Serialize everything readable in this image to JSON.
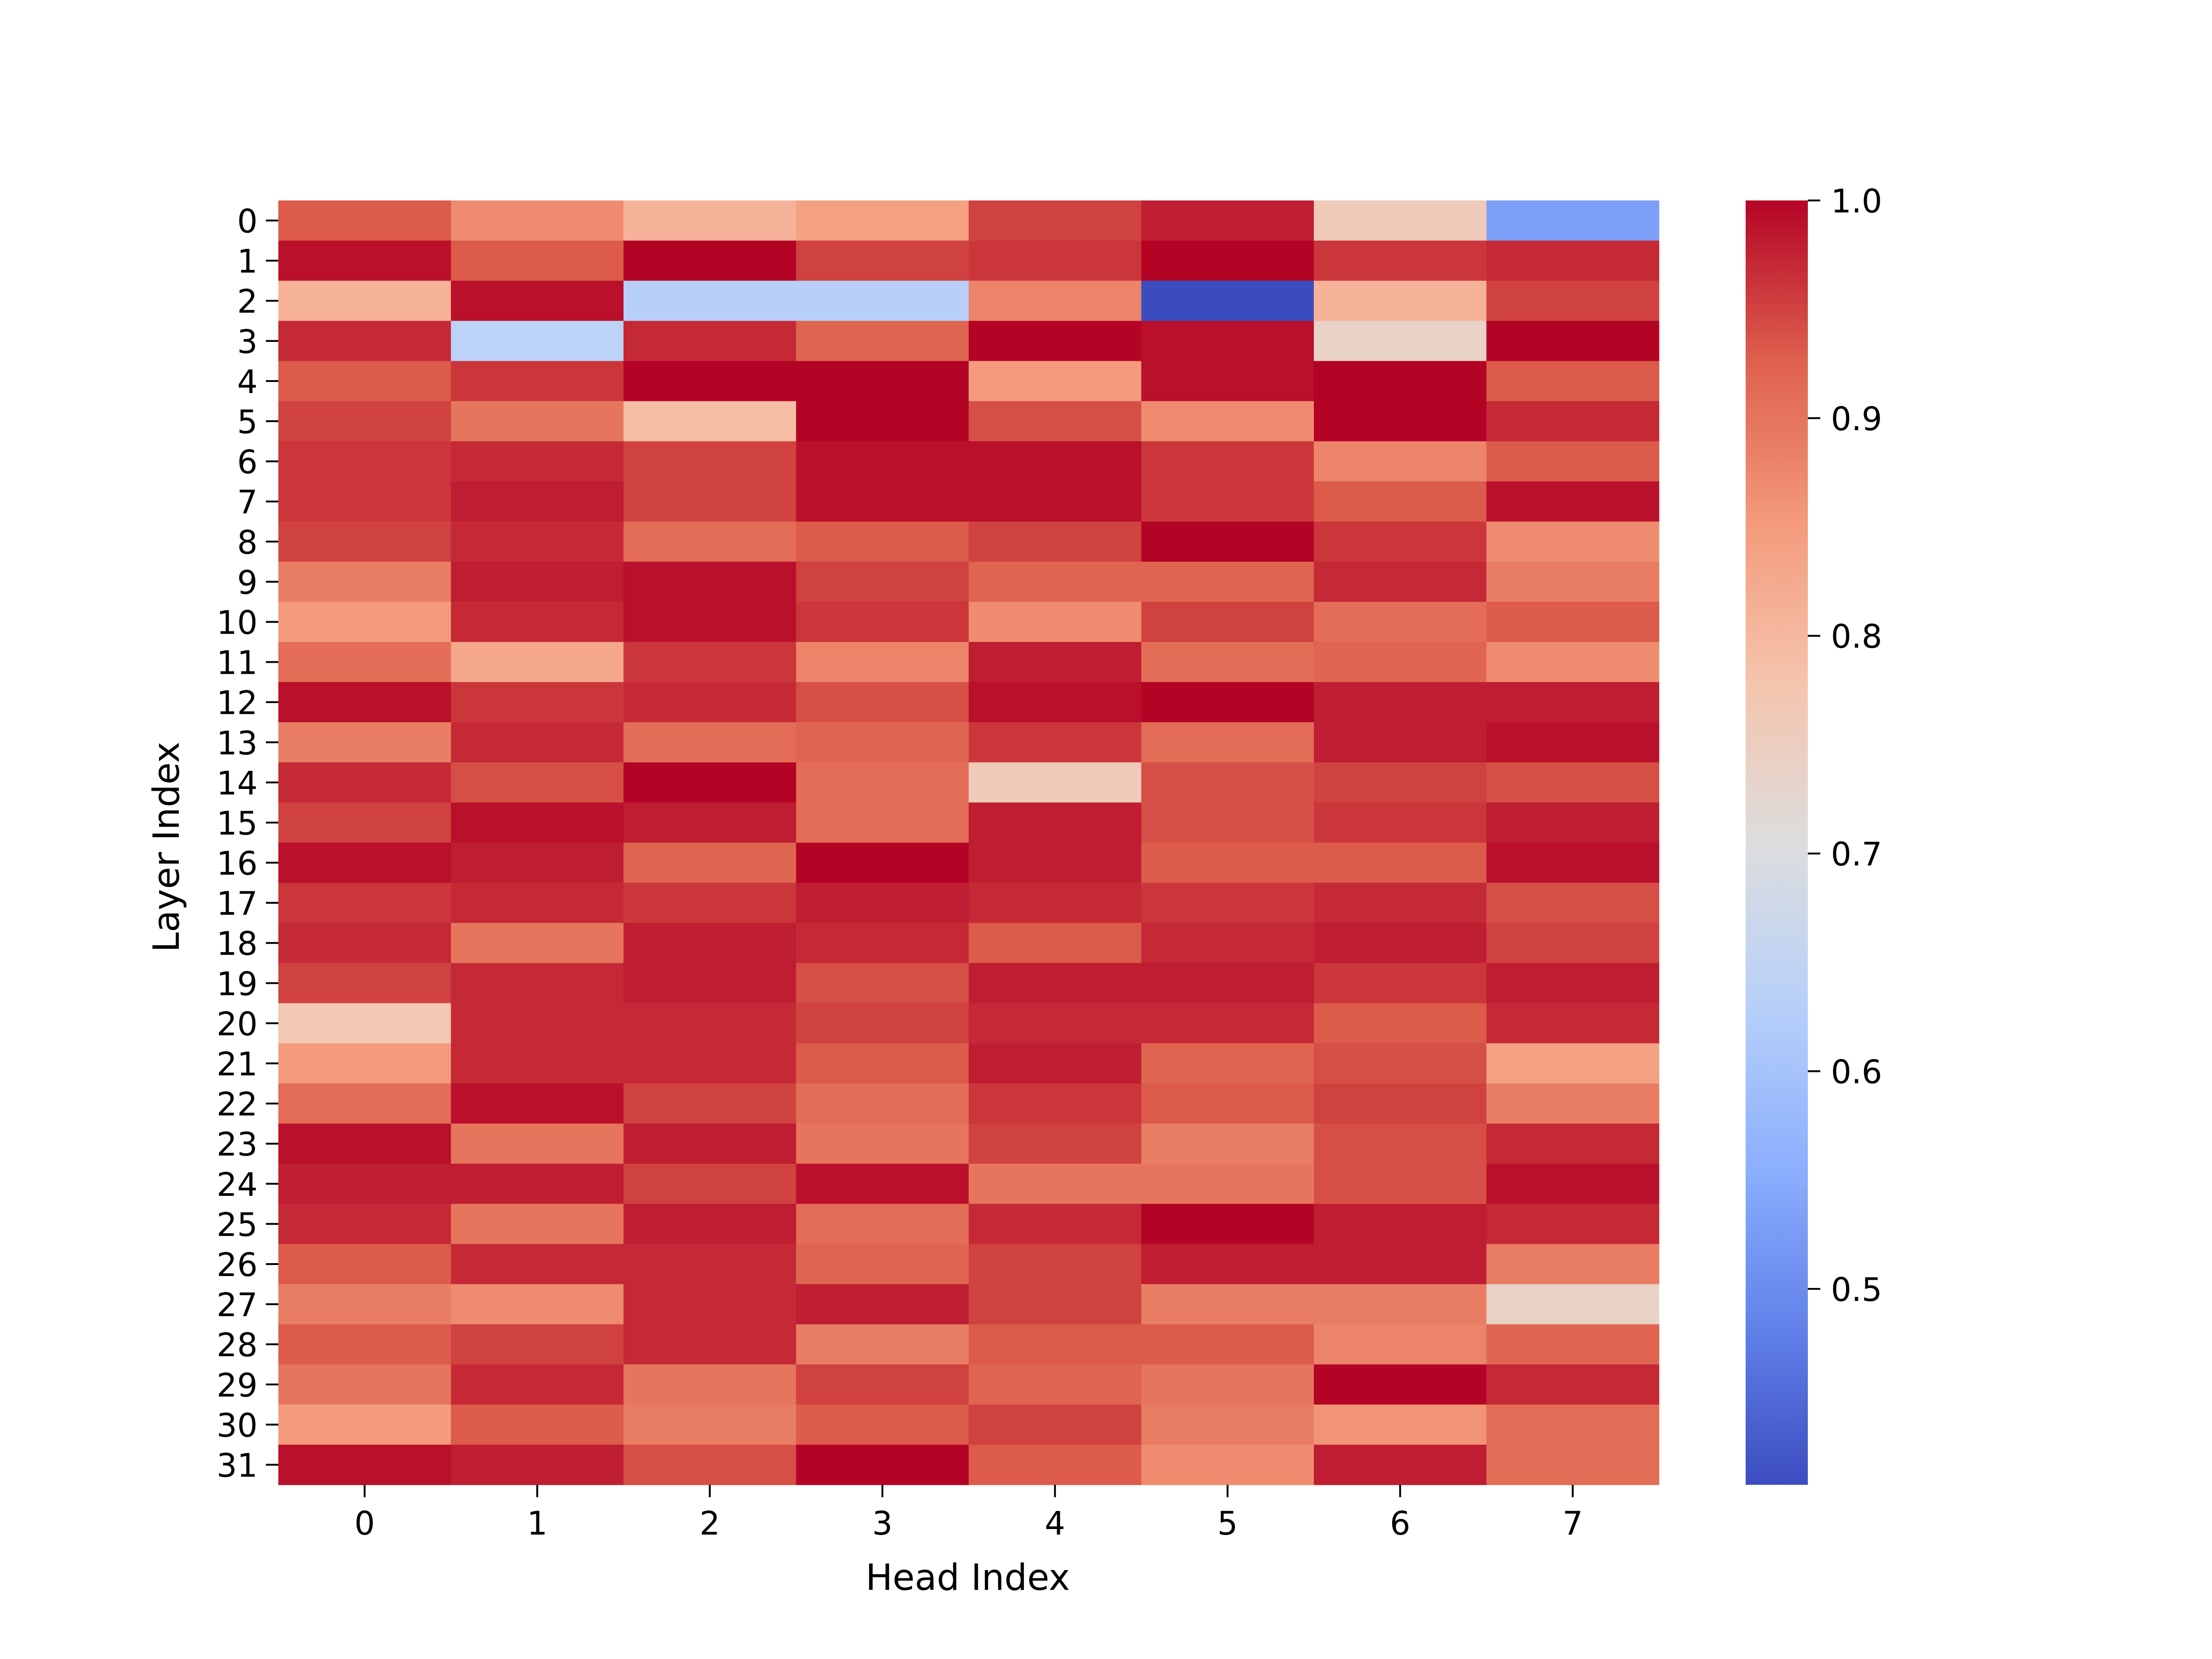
{
  "chart_data": {
    "type": "heatmap",
    "title": "",
    "xlabel": "Head Index",
    "ylabel": "Layer Index",
    "x_categories": [
      "0",
      "1",
      "2",
      "3",
      "4",
      "5",
      "6",
      "7"
    ],
    "y_categories": [
      "0",
      "1",
      "2",
      "3",
      "4",
      "5",
      "6",
      "7",
      "8",
      "9",
      "10",
      "11",
      "12",
      "13",
      "14",
      "15",
      "16",
      "17",
      "18",
      "19",
      "20",
      "21",
      "22",
      "23",
      "24",
      "25",
      "26",
      "27",
      "28",
      "29",
      "30",
      "31"
    ],
    "colormap": "coolwarm",
    "vmin": 0.41,
    "vmax": 1.0,
    "colorbar_ticks": [
      "1.0",
      "0.9",
      "0.8",
      "0.7",
      "0.6",
      "0.5"
    ],
    "colorbar_tick_values": [
      1.0,
      0.9,
      0.8,
      0.7,
      0.6,
      0.5
    ],
    "values": [
      [
        0.93,
        0.87,
        0.81,
        0.84,
        0.95,
        0.98,
        0.76,
        0.53
      ],
      [
        0.99,
        0.93,
        1.0,
        0.95,
        0.96,
        1.0,
        0.96,
        0.97
      ],
      [
        0.81,
        0.99,
        0.63,
        0.63,
        0.88,
        0.41,
        0.81,
        0.95
      ],
      [
        0.97,
        0.64,
        0.97,
        0.92,
        1.0,
        0.99,
        0.74,
        1.0
      ],
      [
        0.93,
        0.96,
        1.0,
        1.0,
        0.85,
        0.99,
        1.0,
        0.93
      ],
      [
        0.95,
        0.9,
        0.79,
        1.0,
        0.94,
        0.87,
        1.0,
        0.97
      ],
      [
        0.96,
        0.97,
        0.95,
        0.99,
        0.99,
        0.96,
        0.88,
        0.93
      ],
      [
        0.96,
        0.98,
        0.95,
        0.99,
        0.99,
        0.96,
        0.93,
        0.99
      ],
      [
        0.95,
        0.97,
        0.91,
        0.93,
        0.95,
        1.0,
        0.96,
        0.87
      ],
      [
        0.89,
        0.98,
        0.99,
        0.95,
        0.92,
        0.92,
        0.97,
        0.89
      ],
      [
        0.85,
        0.97,
        0.99,
        0.96,
        0.87,
        0.95,
        0.91,
        0.93
      ],
      [
        0.91,
        0.83,
        0.96,
        0.88,
        0.98,
        0.91,
        0.92,
        0.87
      ],
      [
        0.99,
        0.96,
        0.97,
        0.94,
        0.99,
        1.0,
        0.98,
        0.98
      ],
      [
        0.89,
        0.97,
        0.91,
        0.92,
        0.96,
        0.91,
        0.98,
        0.99
      ],
      [
        0.97,
        0.94,
        1.0,
        0.91,
        0.76,
        0.94,
        0.95,
        0.94
      ],
      [
        0.95,
        0.99,
        0.98,
        0.91,
        0.98,
        0.94,
        0.96,
        0.98
      ],
      [
        0.99,
        0.98,
        0.92,
        1.0,
        0.98,
        0.93,
        0.93,
        0.99
      ],
      [
        0.96,
        0.97,
        0.96,
        0.98,
        0.97,
        0.96,
        0.97,
        0.94
      ],
      [
        0.97,
        0.9,
        0.98,
        0.97,
        0.93,
        0.97,
        0.98,
        0.95
      ],
      [
        0.95,
        0.97,
        0.98,
        0.94,
        0.98,
        0.98,
        0.96,
        0.98
      ],
      [
        0.77,
        0.97,
        0.97,
        0.95,
        0.97,
        0.97,
        0.93,
        0.97
      ],
      [
        0.85,
        0.97,
        0.97,
        0.93,
        0.98,
        0.92,
        0.94,
        0.84
      ],
      [
        0.91,
        0.99,
        0.95,
        0.91,
        0.96,
        0.93,
        0.95,
        0.89
      ],
      [
        0.99,
        0.9,
        0.98,
        0.9,
        0.95,
        0.89,
        0.94,
        0.97
      ],
      [
        0.98,
        0.98,
        0.95,
        0.99,
        0.9,
        0.9,
        0.94,
        0.99
      ],
      [
        0.97,
        0.9,
        0.98,
        0.91,
        0.97,
        1.0,
        0.98,
        0.97
      ],
      [
        0.93,
        0.97,
        0.97,
        0.92,
        0.95,
        0.98,
        0.98,
        0.89
      ],
      [
        0.89,
        0.87,
        0.97,
        0.98,
        0.95,
        0.89,
        0.89,
        0.74
      ],
      [
        0.93,
        0.95,
        0.97,
        0.89,
        0.93,
        0.93,
        0.88,
        0.92
      ],
      [
        0.9,
        0.97,
        0.9,
        0.95,
        0.92,
        0.9,
        1.0,
        0.97
      ],
      [
        0.85,
        0.93,
        0.89,
        0.93,
        0.95,
        0.89,
        0.86,
        0.91
      ],
      [
        0.99,
        0.98,
        0.94,
        1.0,
        0.93,
        0.87,
        0.98,
        0.91
      ]
    ]
  }
}
